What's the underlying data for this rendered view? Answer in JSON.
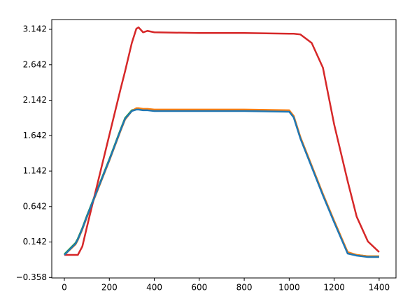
{
  "chart_data": {
    "type": "line",
    "x": [
      0,
      50,
      60,
      80,
      100,
      150,
      200,
      250,
      270,
      300,
      320,
      330,
      350,
      370,
      400,
      600,
      800,
      1000,
      1020,
      1050,
      1100,
      1150,
      1200,
      1260,
      1300,
      1350,
      1400
    ],
    "series": [
      {
        "color": "#2ca02c",
        "values": [
          -0.03,
          0.13,
          0.19,
          0.34,
          0.51,
          0.91,
          1.31,
          1.73,
          1.89,
          2.0,
          2.02,
          2.02,
          2.01,
          2.01,
          2.0,
          2.0,
          2.0,
          1.99,
          1.91,
          1.61,
          1.21,
          0.81,
          0.43,
          -0.01,
          -0.04,
          -0.06,
          -0.06
        ]
      },
      {
        "color": "#ff7f0e",
        "values": [
          -0.04,
          0.11,
          0.17,
          0.32,
          0.49,
          0.89,
          1.29,
          1.71,
          1.87,
          1.99,
          2.03,
          2.03,
          2.02,
          2.02,
          2.01,
          2.01,
          2.01,
          2.0,
          1.92,
          1.62,
          1.22,
          0.82,
          0.44,
          0.0,
          -0.04,
          -0.06,
          -0.06
        ]
      },
      {
        "color": "#d62728",
        "values": [
          -0.04,
          -0.04,
          -0.04,
          0.08,
          0.35,
          1.0,
          1.65,
          2.3,
          2.55,
          2.95,
          3.15,
          3.17,
          3.1,
          3.12,
          3.1,
          3.09,
          3.09,
          3.08,
          3.08,
          3.07,
          2.95,
          2.6,
          1.8,
          1.0,
          0.5,
          0.15,
          0.0
        ]
      },
      {
        "color": "#1f77b4",
        "values": [
          -0.04,
          0.12,
          0.18,
          0.33,
          0.5,
          0.9,
          1.3,
          1.72,
          1.88,
          1.99,
          2.01,
          2.01,
          2.0,
          2.0,
          1.99,
          1.99,
          1.99,
          1.98,
          1.9,
          1.6,
          1.2,
          0.8,
          0.42,
          -0.02,
          -0.05,
          -0.07,
          -0.07
        ]
      }
    ],
    "xlim": [
      -56,
      1475
    ],
    "ylim": [
      -0.365,
      3.28
    ],
    "xticks": [
      0,
      200,
      400,
      600,
      800,
      1000,
      1200,
      1400
    ],
    "yticks": [
      {
        "value": -0.358,
        "label": "−0.358"
      },
      0.142,
      0.642,
      1.142,
      1.642,
      2.142,
      2.642,
      3.142
    ]
  }
}
